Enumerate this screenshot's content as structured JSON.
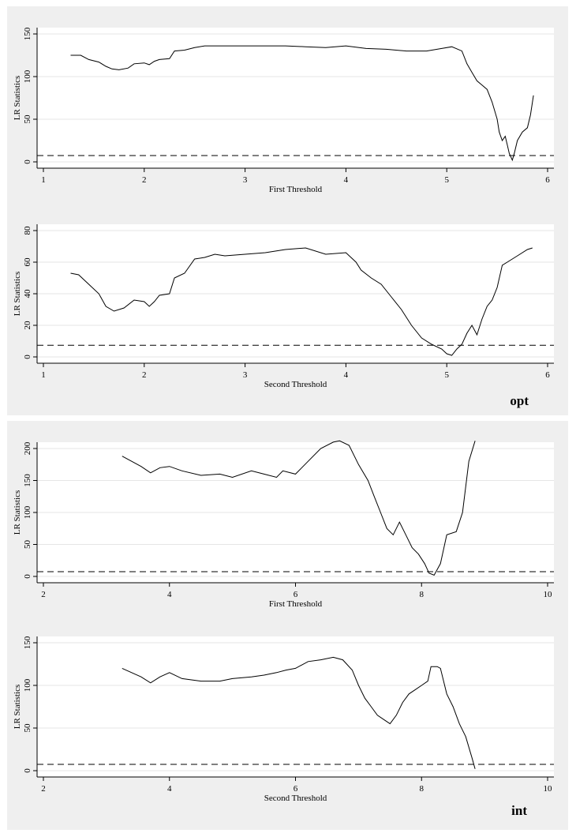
{
  "panels": [
    {
      "tag": "opt"
    },
    {
      "tag": "int"
    }
  ],
  "chart_data": [
    {
      "type": "line",
      "panel": "opt",
      "xlabel": "First Threshold",
      "ylabel": "LR Statistics",
      "xlim": [
        1,
        6
      ],
      "xticks": [
        1,
        2,
        3,
        4,
        5,
        6
      ],
      "ylim": [
        0,
        150
      ],
      "yticks": [
        0,
        50,
        100,
        150
      ],
      "critical_value": 7.35,
      "x": [
        1.27,
        1.37,
        1.45,
        1.55,
        1.62,
        1.68,
        1.75,
        1.84,
        1.9,
        2.0,
        2.05,
        2.1,
        2.15,
        2.25,
        2.3,
        2.4,
        2.5,
        2.6,
        2.8,
        3.0,
        3.2,
        3.4,
        3.6,
        3.8,
        4.0,
        4.2,
        4.4,
        4.6,
        4.8,
        4.95,
        5.05,
        5.15,
        5.2,
        5.25,
        5.3,
        5.35,
        5.4,
        5.45,
        5.5,
        5.52,
        5.55,
        5.58,
        5.6,
        5.62,
        5.65,
        5.67,
        5.7,
        5.75,
        5.8,
        5.83,
        5.86
      ],
      "y": [
        125,
        125,
        120,
        117,
        112,
        109,
        108,
        110,
        115,
        116,
        114,
        118,
        120,
        121,
        130,
        131,
        134,
        136,
        136,
        136,
        136,
        136,
        135,
        134,
        136,
        133,
        132,
        130,
        130,
        133,
        135,
        130,
        115,
        105,
        95,
        90,
        85,
        70,
        50,
        35,
        25,
        30,
        20,
        10,
        2,
        10,
        25,
        35,
        40,
        55,
        78
      ]
    },
    {
      "type": "line",
      "panel": "opt",
      "xlabel": "Second Threshold",
      "ylabel": "LR Statistics",
      "xlim": [
        1,
        6
      ],
      "xticks": [
        1,
        2,
        3,
        4,
        5,
        6
      ],
      "ylim": [
        0,
        80
      ],
      "yticks": [
        0,
        20,
        40,
        60,
        80
      ],
      "critical_value": 7.35,
      "x": [
        1.27,
        1.35,
        1.45,
        1.55,
        1.62,
        1.7,
        1.8,
        1.9,
        2.0,
        2.05,
        2.1,
        2.15,
        2.25,
        2.3,
        2.4,
        2.5,
        2.6,
        2.7,
        2.8,
        3.0,
        3.2,
        3.4,
        3.6,
        3.8,
        4.0,
        4.1,
        4.15,
        4.25,
        4.35,
        4.45,
        4.55,
        4.65,
        4.75,
        4.85,
        4.95,
        5.0,
        5.05,
        5.1,
        5.15,
        5.2,
        5.25,
        5.3,
        5.35,
        5.4,
        5.45,
        5.5,
        5.55,
        5.6,
        5.7,
        5.8,
        5.85
      ],
      "y": [
        53,
        52,
        46,
        40,
        32,
        29,
        31,
        36,
        35,
        32,
        35,
        39,
        40,
        50,
        53,
        62,
        63,
        65,
        64,
        65,
        66,
        68,
        69,
        65,
        66,
        60,
        55,
        50,
        46,
        38,
        30,
        20,
        12,
        8,
        5,
        2,
        1,
        5,
        8,
        15,
        20,
        14,
        24,
        32,
        36,
        44,
        58,
        60,
        64,
        68,
        69
      ]
    },
    {
      "type": "line",
      "panel": "int",
      "xlabel": "First Threshold",
      "ylabel": "LR Statistics",
      "xlim": [
        2,
        10
      ],
      "xticks": [
        2,
        4,
        6,
        8,
        10
      ],
      "ylim": [
        0,
        200
      ],
      "yticks": [
        0,
        50,
        100,
        150,
        200
      ],
      "critical_value": 7.35,
      "x": [
        3.25,
        3.4,
        3.55,
        3.7,
        3.85,
        4.0,
        4.2,
        4.5,
        4.8,
        5.0,
        5.3,
        5.5,
        5.7,
        5.8,
        6.0,
        6.2,
        6.4,
        6.6,
        6.7,
        6.85,
        7.0,
        7.15,
        7.25,
        7.35,
        7.45,
        7.55,
        7.65,
        7.75,
        7.85,
        7.95,
        8.05,
        8.12,
        8.2,
        8.3,
        8.4,
        8.55,
        8.65,
        8.75,
        8.85
      ],
      "y": [
        188,
        180,
        172,
        162,
        170,
        172,
        165,
        158,
        160,
        155,
        165,
        160,
        155,
        165,
        160,
        180,
        200,
        210,
        212,
        205,
        175,
        150,
        125,
        100,
        75,
        65,
        85,
        65,
        45,
        35,
        20,
        5,
        2,
        20,
        65,
        70,
        100,
        180,
        212
      ]
    },
    {
      "type": "line",
      "panel": "int",
      "xlabel": "Second Threshold",
      "ylabel": "LR Statistics",
      "xlim": [
        2,
        10
      ],
      "xticks": [
        2,
        4,
        6,
        8,
        10
      ],
      "ylim": [
        0,
        150
      ],
      "yticks": [
        0,
        50,
        100,
        150
      ],
      "critical_value": 7.35,
      "x": [
        3.25,
        3.4,
        3.55,
        3.7,
        3.85,
        4.0,
        4.2,
        4.5,
        4.8,
        5.0,
        5.3,
        5.5,
        5.7,
        5.85,
        6.0,
        6.2,
        6.4,
        6.6,
        6.75,
        6.9,
        7.0,
        7.1,
        7.2,
        7.3,
        7.4,
        7.5,
        7.6,
        7.7,
        7.8,
        7.9,
        8.0,
        8.1,
        8.15,
        8.25,
        8.3,
        8.4,
        8.5,
        8.6,
        8.7,
        8.8,
        8.85
      ],
      "y": [
        120,
        115,
        110,
        103,
        110,
        115,
        108,
        105,
        105,
        108,
        110,
        112,
        115,
        118,
        120,
        128,
        130,
        133,
        130,
        118,
        100,
        85,
        75,
        65,
        60,
        55,
        65,
        80,
        90,
        95,
        100,
        105,
        122,
        122,
        120,
        90,
        75,
        55,
        40,
        15,
        2
      ]
    }
  ]
}
